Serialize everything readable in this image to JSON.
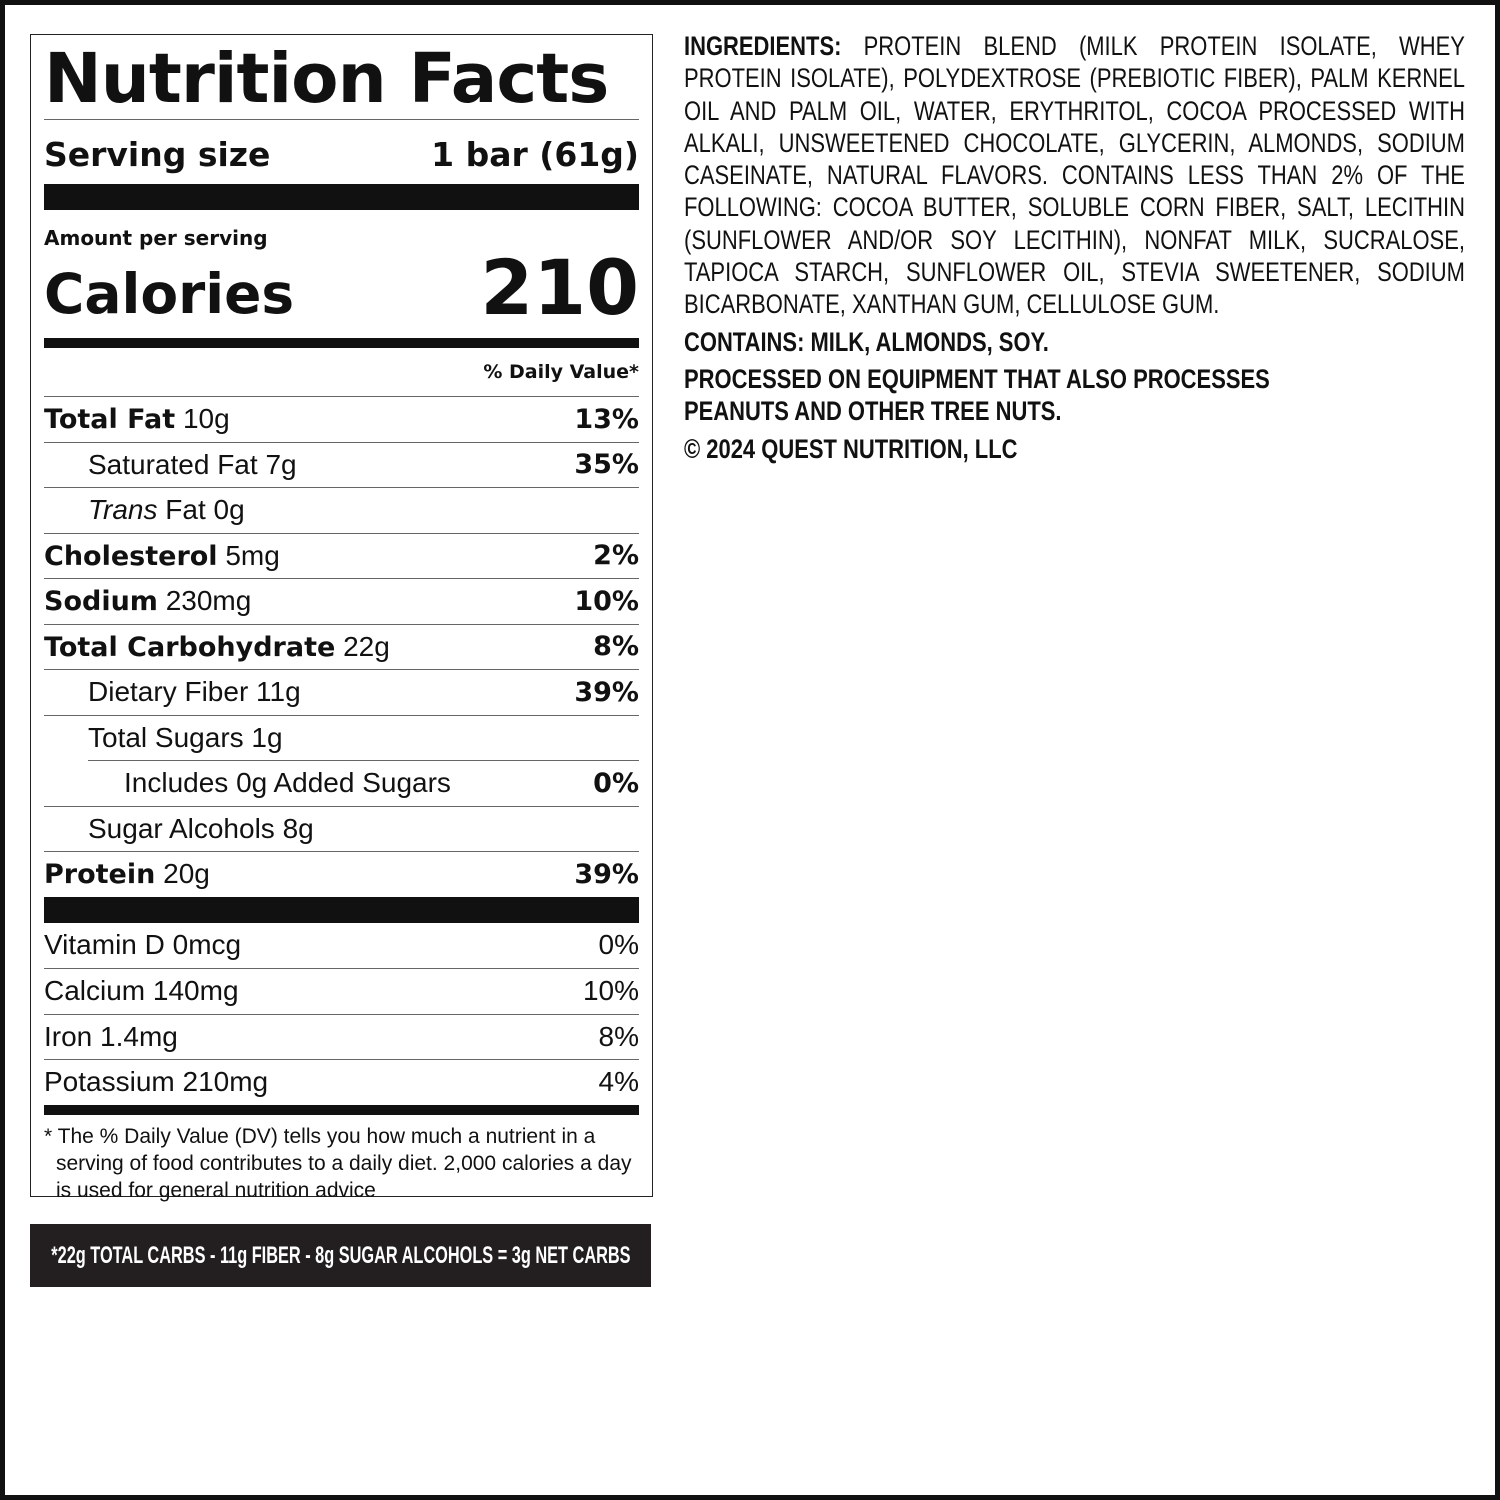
{
  "label": {
    "title": "Nutrition Facts",
    "serving_size_label": "Serving size",
    "serving_size_value": "1 bar (61g)",
    "amount_per_serving": "Amount per serving",
    "calories_label": "Calories",
    "calories_value": "210",
    "daily_value_header": "% Daily Value*",
    "nutrients": [
      {
        "name": "Total Fat",
        "amount": "10g",
        "dv": "13%"
      },
      {
        "name": "Saturated Fat",
        "amount": "7g",
        "dv": "35%"
      },
      {
        "name": "Trans",
        "name2": "Fat",
        "amount": "0g",
        "dv": ""
      },
      {
        "name": "Cholesterol",
        "amount": "5mg",
        "dv": "2%"
      },
      {
        "name": "Sodium",
        "amount": "230mg",
        "dv": "10%"
      },
      {
        "name": "Total Carbohydrate",
        "amount": "22g",
        "dv": "8%"
      },
      {
        "name": "Dietary Fiber",
        "amount": "11g",
        "dv": "39%"
      },
      {
        "name": "Total Sugars",
        "amount": "1g",
        "dv": ""
      },
      {
        "name": "Includes 0g Added Sugars",
        "amount": "",
        "dv": "0%"
      },
      {
        "name": "Sugar Alcohols",
        "amount": "8g",
        "dv": ""
      },
      {
        "name": "Protein",
        "amount": "20g",
        "dv": "39%"
      }
    ],
    "vitamins": [
      {
        "text": "Vitamin D 0mcg",
        "dv": "0%"
      },
      {
        "text": "Calcium 140mg",
        "dv": "10%"
      },
      {
        "text": "Iron 1.4mg",
        "dv": "8%"
      },
      {
        "text": "Potassium 210mg",
        "dv": "4%"
      }
    ],
    "footnote": "* The % Daily Value (DV) tells you how much a nutrient in a serving of food contributes to a daily diet. 2,000 calories a day is used for general nutrition advice"
  },
  "net_carbs_banner": "*22g TOTAL CARBS - 11g FIBER - 8g SUGAR ALCOHOLS = 3g NET CARBS",
  "ingredients": {
    "label": "INGREDIENTS:",
    "text": "PROTEIN BLEND (MILK PROTEIN ISOLATE, WHEY PROTEIN ISOLATE), POLYDEXTROSE (PREBIOTIC FIBER), PALM KERNEL OIL AND PALM OIL, WATER, ERYTHRITOL, COCOA PROCESSED WITH ALKALI, UNSWEETENED CHOCOLATE, GLYCERIN, ALMONDS, SODIUM CASEINATE, NATURAL FLAVORS. CONTAINS LESS THAN 2% OF THE FOLLOWING: COCOA BUTTER, SOLUBLE CORN FIBER, SALT, LECITHIN (SUNFLOWER AND/OR SOY LECITHIN), NONFAT MILK, SUCRALOSE, TAPIOCA STARCH, SUNFLOWER OIL, STEVIA SWEETENER, SODIUM BICARBONATE, XANTHAN GUM, CELLULOSE GUM.",
    "contains": "CONTAINS: MILK, ALMONDS, SOY.",
    "processed": "PROCESSED ON EQUIPMENT THAT ALSO PROCESSES PEANUTS AND OTHER TREE NUTS.",
    "copyright": "© 2024 QUEST NUTRITION, LLC"
  }
}
